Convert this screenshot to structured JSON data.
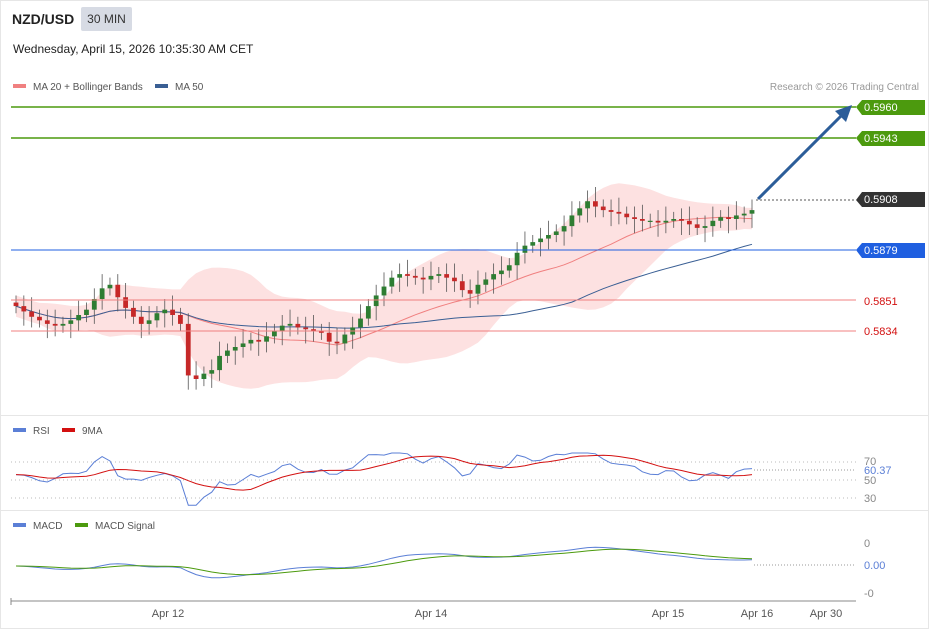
{
  "header": {
    "symbol": "NZD/USD",
    "timeframe": "30 MIN",
    "datetime": "Wednesday, April 15, 2026 10:35:30 AM CET"
  },
  "legend": {
    "ma20_bb": "MA 20 + Bollinger Bands",
    "ma50": "MA 50",
    "copyright": "Research © 2026 Trading Central"
  },
  "levels": {
    "r2": "0.5960",
    "r1": "0.5943",
    "current": "0.5908",
    "pivot": "0.5879",
    "s1": "0.5851",
    "s2": "0.5834"
  },
  "rsi_legend": {
    "rsi": "RSI",
    "ma9": "9MA"
  },
  "rsi_axis": {
    "t70": "70",
    "t50": "50",
    "t30": "30",
    "current": "60.37"
  },
  "macd_legend": {
    "macd": "MACD",
    "signal": "MACD Signal"
  },
  "macd_axis": {
    "t0": "0",
    "tm0": "-0",
    "current": "0.00"
  },
  "xaxis": {
    "l1": "Apr 12",
    "l2": "Apr 14",
    "l3": "Apr 15",
    "l4": "Apr 16",
    "l5": "Apr 30"
  },
  "colors": {
    "up": "#2e7d32",
    "down": "#c62828",
    "bb_fill": "#fde1e1",
    "ma20": "#f08080",
    "ma50": "#3a5f94",
    "resistance": "#4c9a0e",
    "pivot": "#1f5fe0",
    "support": "#f08080",
    "rsi": "#5b7fd6",
    "rsi_ma": "#d31010",
    "macd": "#5b7fd6",
    "macd_signal": "#4c9a0e",
    "arrow": "#2c5d99"
  },
  "chart_data": [
    {
      "type": "candlestick",
      "title": "NZD/USD 30 MIN",
      "price_levels": [
        0.596,
        0.5943,
        0.5908,
        0.5879,
        0.5851,
        0.5834
      ],
      "current_price": 0.5908,
      "approx_range": [
        0.5802,
        0.5975
      ],
      "close_series_approx": [
        0.5848,
        0.5845,
        0.5842,
        0.584,
        0.5838,
        0.5837,
        0.5838,
        0.584,
        0.5843,
        0.5846,
        0.5852,
        0.5858,
        0.586,
        0.5853,
        0.5847,
        0.5842,
        0.5838,
        0.584,
        0.5844,
        0.5846,
        0.5843,
        0.5838,
        0.5809,
        0.5807,
        0.581,
        0.5812,
        0.582,
        0.5823,
        0.5825,
        0.5827,
        0.5829,
        0.5828,
        0.5831,
        0.5834,
        0.5837,
        0.5838,
        0.5836,
        0.5835,
        0.5834,
        0.5833,
        0.5828,
        0.5827,
        0.5832,
        0.5836,
        0.5841,
        0.5848,
        0.5854,
        0.5859,
        0.5864,
        0.5866,
        0.5865,
        0.5864,
        0.5863,
        0.5865,
        0.5866,
        0.5864,
        0.5862,
        0.5857,
        0.5855,
        0.586,
        0.5863,
        0.5866,
        0.5868,
        0.5871,
        0.5878,
        0.5882,
        0.5884,
        0.5886,
        0.5888,
        0.589,
        0.5893,
        0.5899,
        0.5903,
        0.5907,
        0.5904,
        0.5902,
        0.5901,
        0.59,
        0.5898,
        0.5897,
        0.5896,
        0.5896,
        0.5895,
        0.5896,
        0.5897,
        0.5896,
        0.5894,
        0.5892,
        0.5893,
        0.5896,
        0.5898,
        0.5897,
        0.5899,
        0.59,
        0.5902
      ]
    },
    {
      "type": "line",
      "title": "RSI",
      "series": [
        {
          "name": "RSI"
        },
        {
          "name": "9MA"
        }
      ],
      "yticks": [
        70,
        50,
        30
      ],
      "current_value": 60.37
    },
    {
      "type": "line",
      "title": "MACD",
      "series": [
        {
          "name": "MACD"
        },
        {
          "name": "MACD Signal"
        }
      ],
      "yticks": [
        0,
        0
      ],
      "current_value": 0.0
    }
  ]
}
